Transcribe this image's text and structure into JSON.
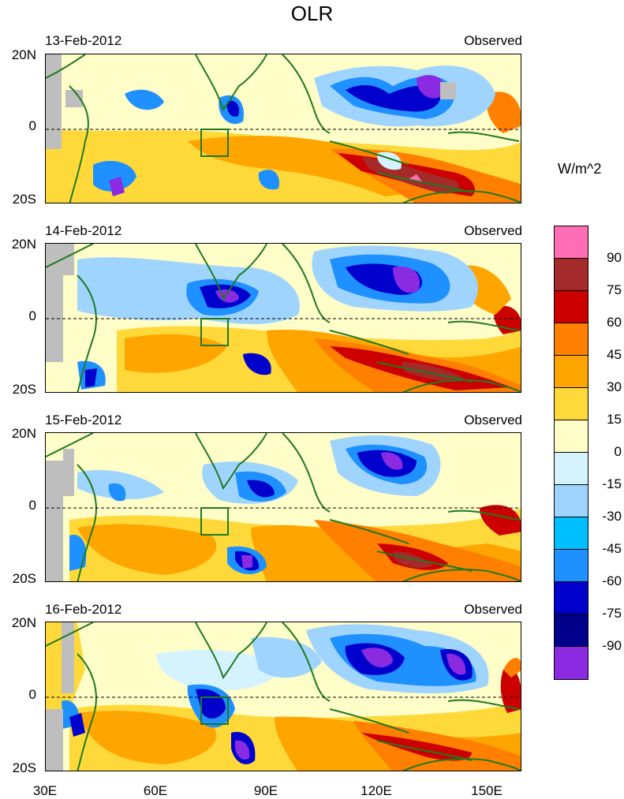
{
  "title": "OLR",
  "units": "W/m^2",
  "panels": [
    {
      "date": "13-Feb-2012",
      "source": "Observed"
    },
    {
      "date": "14-Feb-2012",
      "source": "Observed"
    },
    {
      "date": "15-Feb-2012",
      "source": "Observed"
    },
    {
      "date": "16-Feb-2012",
      "source": "Observed"
    }
  ],
  "lat_labels": [
    "20N",
    "0",
    "20S"
  ],
  "lon_labels": [
    "30E",
    "60E",
    "90E",
    "120E",
    "150E"
  ],
  "colorbar": {
    "labels": [
      "90",
      "75",
      "60",
      "45",
      "30",
      "15",
      "0",
      "-15",
      "-30",
      "-45",
      "-60",
      "-75",
      "-90"
    ],
    "colors": [
      "#ff6eb4",
      "#a52a2a",
      "#cd0000",
      "#ff7f00",
      "#ffa500",
      "#ffd93a",
      "#fffdc8",
      "#d5f2ff",
      "#9fd4ff",
      "#00bfff",
      "#1e90ff",
      "#0000cd",
      "#00008b",
      "#8a2be2"
    ]
  },
  "colors": {
    "coast": "#1f7a1f",
    "land_missing": "#bebebe"
  }
}
